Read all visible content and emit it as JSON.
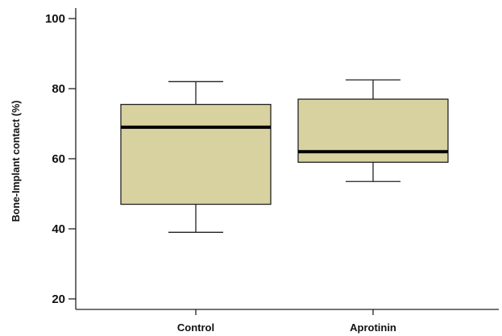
{
  "chart_data": {
    "type": "box",
    "title": "",
    "xlabel": "",
    "ylabel": "Bone-Implant contact (%)",
    "ylim": [
      17,
      103
    ],
    "yticks": [
      20,
      40,
      60,
      80,
      100
    ],
    "grid": false,
    "legend": "none",
    "box_fill": "#d8d2a0",
    "line_color": "#222222",
    "median_color": "#000000",
    "categories": [
      "Control",
      "Aprotinin"
    ],
    "boxes": [
      {
        "category": "Control",
        "min": 39,
        "q1": 47,
        "median": 69,
        "q3": 75.5,
        "max": 82
      },
      {
        "category": "Aprotinin",
        "min": 53.5,
        "q1": 59,
        "median": 62,
        "q3": 77,
        "max": 82.5
      }
    ]
  }
}
